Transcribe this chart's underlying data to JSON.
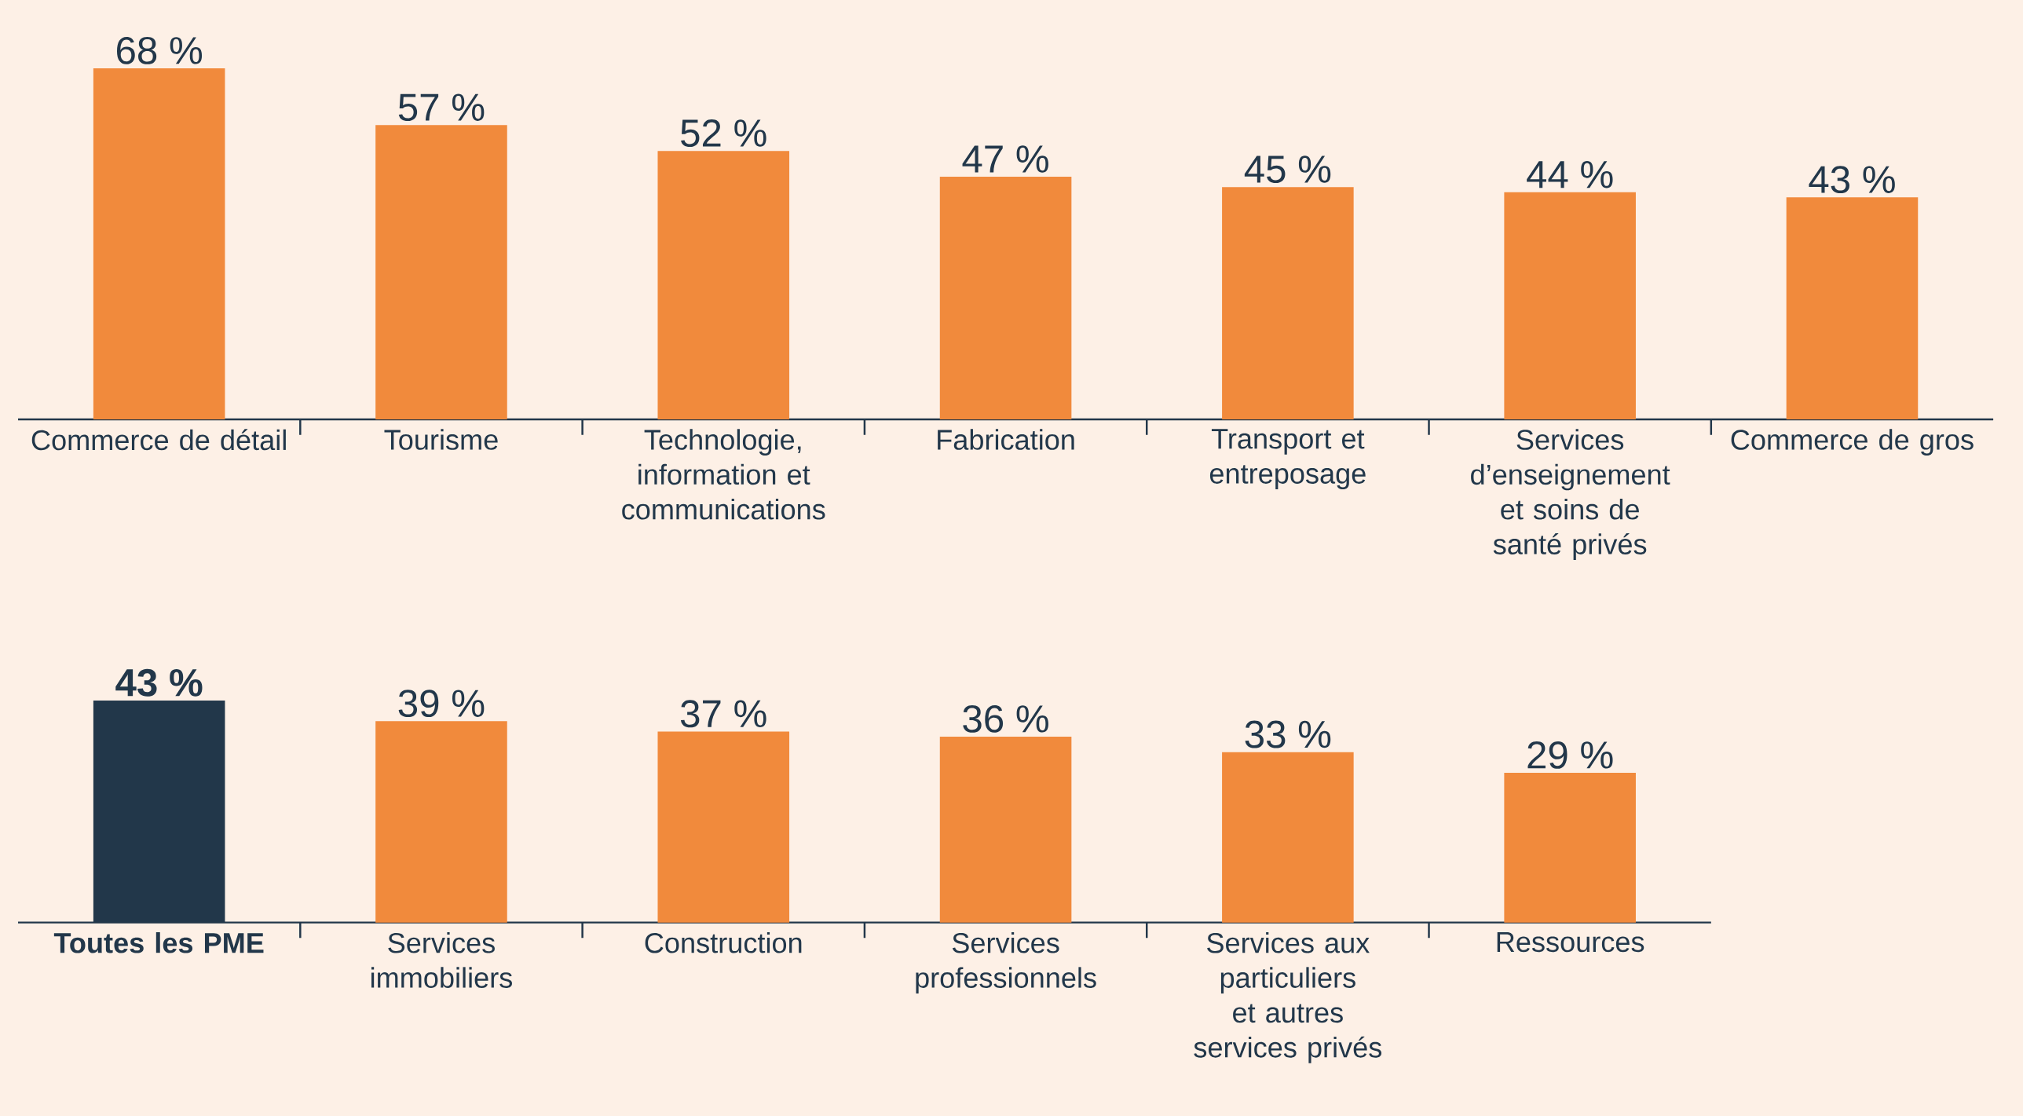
{
  "chart_data": [
    {
      "type": "bar",
      "categories": [
        "Commerce de détail",
        "Tourisme",
        "Technologie, information et communications",
        "Fabrication",
        "Transport et entreposage",
        "Services d’enseignement et soins de santé privés",
        "Commerce de gros"
      ],
      "values": [
        68,
        57,
        52,
        47,
        45,
        44,
        43
      ],
      "value_labels": [
        "68 %",
        "57 %",
        "52 %",
        "47 %",
        "45 %",
        "44 %",
        "43 %"
      ],
      "color": "#f18a3c"
    },
    {
      "type": "bar",
      "categories": [
        "Toutes les PME",
        "Services immobiliers",
        "Construction",
        "Services professionnels",
        "Services aux particuliers et autres services privés",
        "Ressources"
      ],
      "values": [
        43,
        39,
        37,
        36,
        33,
        29
      ],
      "value_labels": [
        "43 %",
        "39 %",
        "37 %",
        "36 %",
        "33 %",
        "29 %"
      ],
      "colors": [
        "#22374a",
        "#f18a3c",
        "#f18a3c",
        "#f18a3c",
        "#f18a3c",
        "#f18a3c"
      ]
    }
  ]
}
